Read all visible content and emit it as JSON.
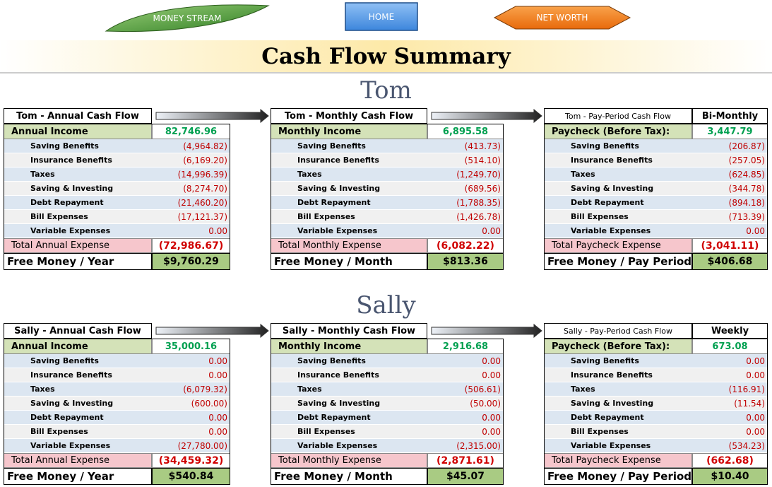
{
  "nav": [
    "MONEY STREAM",
    "HOME",
    "NET WORTH"
  ],
  "title": "Cash Flow Summary",
  "people": [
    {
      "name": "Tom",
      "tables": [
        {
          "title": "Tom - Annual Cash Flow",
          "income": [
            "Annual Income",
            "82,746.96"
          ],
          "rows": [
            [
              "Saving Benefits",
              "(4,964.82)"
            ],
            [
              "Insurance Benefits",
              "(6,169.20)"
            ],
            [
              "Taxes",
              "(14,996.39)"
            ],
            [
              "Saving & Investing",
              "(8,274.70)"
            ],
            [
              "Debt Repayment",
              "(21,460.20)"
            ],
            [
              "Bill Expenses",
              "(17,121.37)"
            ],
            [
              "Variable Expenses",
              "0.00"
            ]
          ],
          "total": [
            "Total Annual Expense",
            "(72,986.67)"
          ],
          "free": [
            "Free Money / Year",
            "$9,760.29"
          ]
        },
        {
          "title": "Tom - Monthly Cash Flow",
          "income": [
            "Monthly Income",
            "6,895.58"
          ],
          "rows": [
            [
              "Saving Benefits",
              "(413.73)"
            ],
            [
              "Insurance Benefits",
              "(514.10)"
            ],
            [
              "Taxes",
              "(1,249.70)"
            ],
            [
              "Saving & Investing",
              "(689.56)"
            ],
            [
              "Debt Repayment",
              "(1,788.35)"
            ],
            [
              "Bill Expenses",
              "(1,426.78)"
            ],
            [
              "Variable Expenses",
              "0.00"
            ]
          ],
          "total": [
            "Total Monthly Expense",
            "(6,082.22)"
          ],
          "free": [
            "Free Money / Month",
            "$813.36"
          ]
        },
        {
          "title": "Tom - Pay-Period Cash Flow",
          "period": "Bi-Monthly",
          "income": [
            "Paycheck (Before Tax):",
            "3,447.79"
          ],
          "rows": [
            [
              "Saving Benefits",
              "(206.87)"
            ],
            [
              "Insurance Benefits",
              "(257.05)"
            ],
            [
              "Taxes",
              "(624.85)"
            ],
            [
              "Saving & Investing",
              "(344.78)"
            ],
            [
              "Debt Repayment",
              "(894.18)"
            ],
            [
              "Bill Expenses",
              "(713.39)"
            ],
            [
              "Variable Expenses",
              "0.00"
            ]
          ],
          "total": [
            "Total Paycheck Expense",
            "(3,041.11)"
          ],
          "free": [
            "Free Money / Pay Period",
            "$406.68"
          ]
        }
      ]
    },
    {
      "name": "Sally",
      "tables": [
        {
          "title": "Sally - Annual Cash Flow",
          "income": [
            "Annual Income",
            "35,000.16"
          ],
          "rows": [
            [
              "Saving Benefits",
              "0.00"
            ],
            [
              "Insurance Benefits",
              "0.00"
            ],
            [
              "Taxes",
              "(6,079.32)"
            ],
            [
              "Saving & Investing",
              "(600.00)"
            ],
            [
              "Debt Repayment",
              "0.00"
            ],
            [
              "Bill Expenses",
              "0.00"
            ],
            [
              "Variable Expenses",
              "(27,780.00)"
            ]
          ],
          "total": [
            "Total Annual Expense",
            "(34,459.32)"
          ],
          "free": [
            "Free Money / Year",
            "$540.84"
          ]
        },
        {
          "title": "Sally - Monthly Cash Flow",
          "income": [
            "Monthly Income",
            "2,916.68"
          ],
          "rows": [
            [
              "Saving Benefits",
              "0.00"
            ],
            [
              "Insurance Benefits",
              "0.00"
            ],
            [
              "Taxes",
              "(506.61)"
            ],
            [
              "Saving & Investing",
              "(50.00)"
            ],
            [
              "Debt Repayment",
              "0.00"
            ],
            [
              "Bill Expenses",
              "0.00"
            ],
            [
              "Variable Expenses",
              "(2,315.00)"
            ]
          ],
          "total": [
            "Total Monthly Expense",
            "(2,871.61)"
          ],
          "free": [
            "Free Money / Month",
            "$45.07"
          ]
        },
        {
          "title": "Sally - Pay-Period Cash Flow",
          "period": "Weekly",
          "income": [
            "Paycheck (Before Tax):",
            "673.08"
          ],
          "rows": [
            [
              "Saving Benefits",
              "0.00"
            ],
            [
              "Insurance Benefits",
              "0.00"
            ],
            [
              "Taxes",
              "(116.91)"
            ],
            [
              "Saving & Investing",
              "(11.54)"
            ],
            [
              "Debt Repayment",
              "0.00"
            ],
            [
              "Bill Expenses",
              "0.00"
            ],
            [
              "Variable Expenses",
              "(534.23)"
            ]
          ],
          "total": [
            "Total Paycheck Expense",
            "(662.68)"
          ],
          "free": [
            "Free Money / Pay Period",
            "$10.40"
          ]
        }
      ]
    }
  ]
}
